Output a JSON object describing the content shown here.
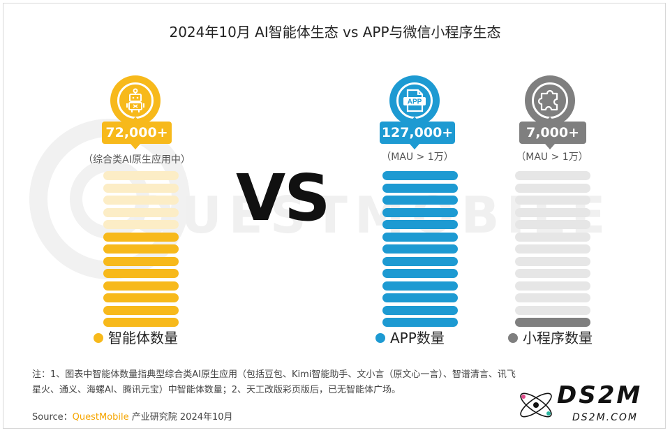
{
  "title": "2024年10月 AI智能体生态 vs APP与微信小程序生态",
  "vs_label": "VS",
  "watermark": "QUESTMOBILE",
  "chart_data": {
    "type": "bar",
    "categories": [
      "智能体数量",
      "APP数量",
      "小程序数量"
    ],
    "series": [
      {
        "name": "智能体数量",
        "value_label": "72,000+",
        "subtitle": "（综合类AI原生应用中）",
        "color": "#f7b91b",
        "icon": "robot-icon",
        "total_bars": 13,
        "filled_bars": 8
      },
      {
        "name": "APP数量",
        "value_label": "127,000+",
        "subtitle": "（MAU > 1万）",
        "color": "#1d9ad2",
        "icon": "app-file-icon",
        "total_bars": 13,
        "filled_bars": 13
      },
      {
        "name": "小程序数量",
        "value_label": "7,000+",
        "subtitle": "（MAU > 1万）",
        "color": "#7f7f7f",
        "icon": "puzzle-icon",
        "total_bars": 13,
        "filled_bars": 1
      }
    ],
    "values": [
      72000,
      127000,
      7000
    ]
  },
  "note": "注：1、图表中智能体数量指典型综合类AI原生应用（包括豆包、Kimi智能助手、文小言（原文心一言）、智谱清言、讯飞星火、通义、海螺AI、腾讯元宝）中智能体数量；2、天工改版彩页版后，已无智能体广场。",
  "source": {
    "prefix": "Source：",
    "brand": "QuestMobile",
    "suffix": " 产业研究院 2024年10月"
  },
  "logo": {
    "main": "DS2M",
    "sub": "DS2M.COM"
  },
  "colors": {
    "agent": "#f7b91b",
    "agent_light": "#fcedc6",
    "app": "#1d9ad2",
    "app_light": "#d2eaf6",
    "mini": "#7f7f7f",
    "mini_light": "#e6e6e6"
  }
}
